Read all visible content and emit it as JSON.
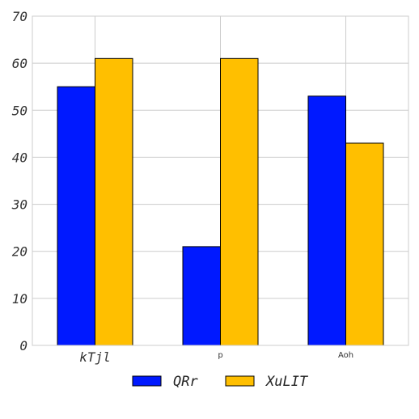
{
  "chart_data": {
    "type": "bar",
    "categories": [
      "kTjl",
      "p",
      "Aoh"
    ],
    "series": [
      {
        "name": "QRr",
        "values": [
          55,
          21,
          53
        ],
        "color": "#0019ff"
      },
      {
        "name": "XuLIT",
        "values": [
          61,
          61,
          43
        ],
        "color": "#ffbf00"
      }
    ],
    "ylim": [
      0,
      70
    ],
    "yticks": [
      "0",
      "10",
      "20",
      "30",
      "40",
      "50",
      "60",
      "70"
    ],
    "grid": true,
    "legend": "bottom"
  }
}
